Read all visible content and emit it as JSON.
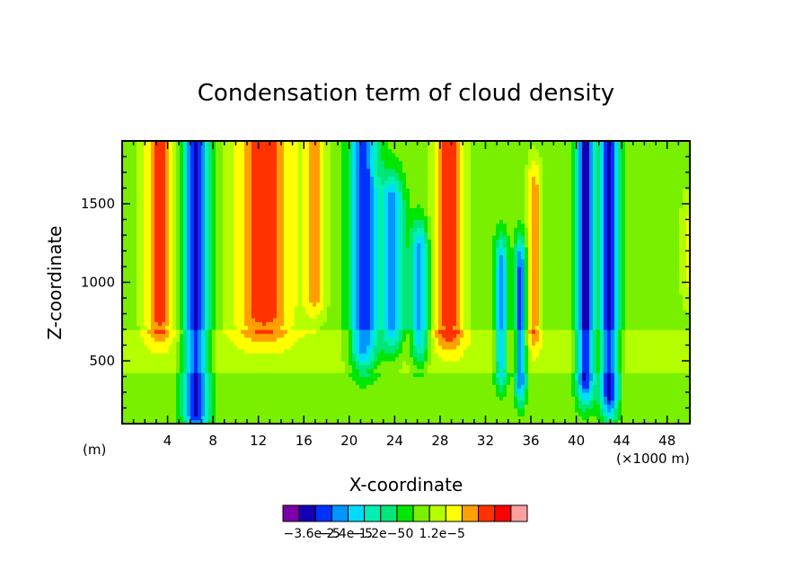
{
  "chart_data": {
    "type": "heatmap",
    "title": "Condensation term of cloud density",
    "xlabel": "X-coordinate",
    "ylabel": "Z-coordinate",
    "x_unit_left": "(m)",
    "x_unit_right": "(×1000 m)",
    "xlim": [
      0,
      50
    ],
    "ylim": [
      100,
      1900
    ],
    "x_ticks": [
      4,
      8,
      12,
      16,
      20,
      24,
      28,
      32,
      36,
      40,
      44,
      48
    ],
    "y_ticks": [
      500,
      1000,
      1500
    ],
    "colorbar": {
      "colors": [
        "#7a00a8",
        "#1400b4",
        "#0032ff",
        "#0096ff",
        "#00dcff",
        "#00f0b4",
        "#00e678",
        "#00e600",
        "#78f000",
        "#b4ff00",
        "#ffff00",
        "#ffa000",
        "#ff3200",
        "#ff0000",
        "#ff7878",
        "#ffa0a0",
        "#ffffff"
      ],
      "boundaries": [
        -4.2e-05,
        -3.6e-05,
        -3e-05,
        -2.4e-05,
        -1.8e-05,
        -1.2e-05,
        -6e-06,
        0,
        6e-06,
        1.2e-05,
        1.8e-05,
        2.4e-05
      ],
      "tick_labels": [
        "−3.6e−5",
        "−2.4e−5",
        "−1.2e−5",
        "0",
        "1.2e−5"
      ]
    },
    "features": [
      {
        "sign": "positive",
        "x_center": 3.3,
        "x_width": 1.7,
        "z_base": 800,
        "z_top": 1900,
        "peak": 2.4e-05
      },
      {
        "sign": "negative",
        "x_center": 6.5,
        "x_width": 1.4,
        "z_base": 200,
        "z_top": 1900,
        "peak": -4.2e-05
      },
      {
        "sign": "positive",
        "x_center": 12.5,
        "x_width": 3.5,
        "z_base": 800,
        "z_top": 1900,
        "peak": 2.4e-05
      },
      {
        "sign": "positive",
        "x_center": 17.0,
        "x_width": 1.2,
        "z_base": 950,
        "z_top": 1900,
        "peak": 1.8e-05
      },
      {
        "sign": "negative",
        "x_center": 21.3,
        "x_width": 1.6,
        "z_base": 600,
        "z_top": 1900,
        "peak": -3.6e-05
      },
      {
        "sign": "negative",
        "x_center": 23.8,
        "x_width": 1.2,
        "z_base": 700,
        "z_top": 1500,
        "peak": -3e-05
      },
      {
        "sign": "negative",
        "x_center": 26.2,
        "x_width": 1.0,
        "z_base": 650,
        "z_top": 1200,
        "peak": -3e-05
      },
      {
        "sign": "positive",
        "x_center": 28.8,
        "x_width": 1.8,
        "z_base": 750,
        "z_top": 1900,
        "peak": 2.4e-05
      },
      {
        "sign": "negative",
        "x_center": 33.4,
        "x_width": 0.7,
        "z_base": 500,
        "z_top": 1100,
        "peak": -3e-05
      },
      {
        "sign": "negative",
        "x_center": 35.1,
        "x_width": 0.6,
        "z_base": 400,
        "z_top": 1100,
        "peak": -3.6e-05
      },
      {
        "sign": "positive",
        "x_center": 36.3,
        "x_width": 0.8,
        "z_base": 750,
        "z_top": 1600,
        "peak": 1.8e-05
      },
      {
        "sign": "negative",
        "x_center": 40.8,
        "x_width": 1.0,
        "z_base": 400,
        "z_top": 1900,
        "peak": -4.2e-05
      },
      {
        "sign": "negative",
        "x_center": 42.9,
        "x_width": 1.0,
        "z_base": 300,
        "z_top": 1900,
        "peak": -4.2e-05
      },
      {
        "sign": "positive",
        "x_center": 49.7,
        "x_width": 0.6,
        "z_base": 1000,
        "z_top": 1400,
        "peak": 1e-05
      }
    ]
  }
}
